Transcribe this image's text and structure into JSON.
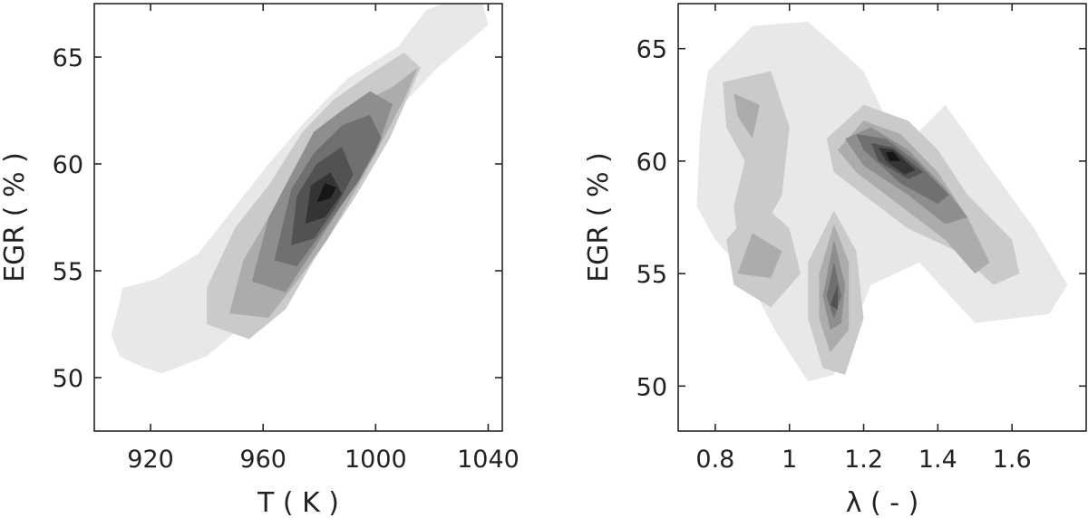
{
  "chart_data": [
    {
      "type": "contour",
      "xlabel": "T ( K )",
      "ylabel": "EGR ( % )",
      "xlim": [
        900,
        1045
      ],
      "ylim": [
        47.5,
        67.5
      ],
      "xticks": [
        920,
        960,
        1000,
        1040
      ],
      "yticks": [
        50,
        55,
        60,
        65
      ],
      "levels": 8,
      "colormap": "grayscale",
      "grid": false,
      "contours": [
        {
          "level": 1,
          "polygons": [
            [
              [
                906,
                52
              ],
              [
                909,
                51
              ],
              [
                917,
                50.5
              ],
              [
                924,
                50.2
              ],
              [
                940,
                51
              ],
              [
                958,
                53
              ],
              [
                972,
                55
              ],
              [
                988,
                58
              ],
              [
                1004,
                62
              ],
              [
                1022,
                64.5
              ],
              [
                1040,
                66.5
              ],
              [
                1038,
                67.5
              ],
              [
                1030,
                67.8
              ],
              [
                1018,
                67.2
              ],
              [
                1008,
                65.5
              ],
              [
                990,
                64
              ],
              [
                975,
                62
              ],
              [
                962,
                60
              ],
              [
                950,
                58
              ],
              [
                937,
                55.8
              ],
              [
                922,
                54.6
              ],
              [
                910,
                54.2
              ],
              [
                909,
                53.5
              ]
            ]
          ]
        },
        {
          "level": 2,
          "polygons": [
            [
              [
                940,
                52.5
              ],
              [
                955,
                51.8
              ],
              [
                968,
                53.2
              ],
              [
                978,
                55.5
              ],
              [
                993,
                58.5
              ],
              [
                1005,
                61.2
              ],
              [
                1016,
                64.5
              ],
              [
                1010,
                65.2
              ],
              [
                998,
                64.2
              ],
              [
                985,
                63
              ],
              [
                974,
                61.5
              ],
              [
                962,
                59
              ],
              [
                950,
                57
              ],
              [
                940,
                54.2
              ]
            ]
          ]
        },
        {
          "level": 3,
          "polygons": [
            [
              [
                948,
                53
              ],
              [
                962,
                52.8
              ],
              [
                972,
                54.5
              ],
              [
                983,
                56.5
              ],
              [
                996,
                59.5
              ],
              [
                1010,
                63
              ],
              [
                1015,
                64.5
              ],
              [
                1006,
                63.6
              ],
              [
                994,
                62.8
              ],
              [
                982,
                61.6
              ],
              [
                972,
                60
              ],
              [
                962,
                57.5
              ],
              [
                953,
                55.5
              ]
            ]
          ]
        },
        {
          "level": 4,
          "polygons": [
            [
              [
                956,
                54.5
              ],
              [
                968,
                54
              ],
              [
                978,
                56
              ],
              [
                990,
                58.5
              ],
              [
                1000,
                60.5
              ],
              [
                1006,
                62.8
              ],
              [
                998,
                63.4
              ],
              [
                988,
                62.5
              ],
              [
                978,
                61.5
              ],
              [
                970,
                59.5
              ],
              [
                962,
                57.5
              ]
            ]
          ]
        },
        {
          "level": 5,
          "polygons": [
            [
              [
                964,
                55.5
              ],
              [
                972,
                55.2
              ],
              [
                982,
                57
              ],
              [
                994,
                59.2
              ],
              [
                1002,
                61.2
              ],
              [
                998,
                62.3
              ],
              [
                988,
                61.8
              ],
              [
                978,
                60.5
              ],
              [
                970,
                58.8
              ]
            ]
          ]
        },
        {
          "level": 6,
          "polygons": [
            [
              [
                970,
                56.2
              ],
              [
                978,
                56.5
              ],
              [
                986,
                58
              ],
              [
                992,
                59.5
              ],
              [
                988,
                60.8
              ],
              [
                979,
                60
              ],
              [
                972,
                58.5
              ]
            ]
          ]
        },
        {
          "level": 7,
          "polygons": [
            [
              [
                975,
                57.2
              ],
              [
                982,
                57.5
              ],
              [
                988,
                58.6
              ],
              [
                984,
                59.6
              ],
              [
                977,
                59
              ]
            ]
          ]
        },
        {
          "level": 8,
          "polygons": [
            [
              [
                979,
                58.2
              ],
              [
                984,
                58.4
              ],
              [
                986,
                58.9
              ],
              [
                982,
                59.1
              ]
            ]
          ]
        }
      ]
    },
    {
      "type": "contour",
      "xlabel": "λ ( - )",
      "ylabel": "EGR ( % )",
      "xlim": [
        0.7,
        1.8
      ],
      "ylim": [
        48,
        67
      ],
      "xticks": [
        0.8,
        1,
        1.2,
        1.4,
        1.6
      ],
      "yticks": [
        50,
        55,
        60,
        65
      ],
      "levels": 8,
      "colormap": "grayscale",
      "grid": false,
      "contours": [
        {
          "level": 1,
          "polygons": [
            [
              [
                0.78,
                64
              ],
              [
                0.9,
                66
              ],
              [
                1.05,
                66.2
              ],
              [
                1.2,
                64
              ],
              [
                1.3,
                60.5
              ],
              [
                1.42,
                62.5
              ],
              [
                1.55,
                59.5
              ],
              [
                1.66,
                57
              ],
              [
                1.75,
                54.5
              ],
              [
                1.7,
                53.2
              ],
              [
                1.5,
                52.8
              ],
              [
                1.35,
                55.5
              ],
              [
                1.22,
                54.5
              ],
              [
                1.12,
                50.5
              ],
              [
                1.05,
                50.2
              ],
              [
                0.96,
                52.5
              ],
              [
                0.88,
                55
              ],
              [
                0.8,
                56.5
              ],
              [
                0.75,
                58
              ],
              [
                0.76,
                61.5
              ]
            ]
          ]
        },
        {
          "level": 2,
          "polygons": [
            [
              [
                0.82,
                63.5
              ],
              [
                0.95,
                64
              ],
              [
                1.0,
                61.5
              ],
              [
                0.98,
                58.5
              ],
              [
                0.93,
                57
              ],
              [
                0.86,
                56.5
              ],
              [
                0.85,
                58
              ],
              [
                0.88,
                60
              ],
              [
                0.83,
                61.5
              ]
            ],
            [
              [
                0.83,
                56.5
              ],
              [
                0.92,
                58.2
              ],
              [
                1.0,
                57
              ],
              [
                1.03,
                55
              ],
              [
                0.95,
                53.5
              ],
              [
                0.85,
                54.5
              ]
            ],
            [
              [
                1.05,
                55.5
              ],
              [
                1.12,
                57.8
              ],
              [
                1.18,
                56
              ],
              [
                1.2,
                53
              ],
              [
                1.15,
                50.5
              ],
              [
                1.09,
                50.8
              ],
              [
                1.05,
                53
              ]
            ],
            [
              [
                1.1,
                61
              ],
              [
                1.2,
                62.5
              ],
              [
                1.32,
                61.8
              ],
              [
                1.4,
                60.5
              ],
              [
                1.48,
                58.5
              ],
              [
                1.6,
                56.5
              ],
              [
                1.62,
                55
              ],
              [
                1.55,
                54.5
              ],
              [
                1.45,
                56
              ],
              [
                1.32,
                57
              ],
              [
                1.2,
                58.5
              ],
              [
                1.12,
                59.5
              ]
            ]
          ]
        },
        {
          "level": 3,
          "polygons": [
            [
              [
                0.85,
                63
              ],
              [
                0.92,
                62.5
              ],
              [
                0.9,
                61
              ],
              [
                0.86,
                62
              ]
            ],
            [
              [
                0.86,
                55
              ],
              [
                0.9,
                56.8
              ],
              [
                0.98,
                56
              ],
              [
                0.95,
                54.8
              ]
            ],
            [
              [
                1.08,
                55
              ],
              [
                1.12,
                57.2
              ],
              [
                1.16,
                55.5
              ],
              [
                1.16,
                52.5
              ],
              [
                1.11,
                51.5
              ],
              [
                1.08,
                53
              ]
            ],
            [
              [
                1.13,
                60.5
              ],
              [
                1.2,
                61.8
              ],
              [
                1.3,
                61.2
              ],
              [
                1.4,
                59.5
              ],
              [
                1.48,
                57.5
              ],
              [
                1.54,
                55.5
              ],
              [
                1.5,
                55
              ],
              [
                1.42,
                56.5
              ],
              [
                1.3,
                58
              ],
              [
                1.18,
                59.5
              ]
            ]
          ]
        },
        {
          "level": 4,
          "polygons": [
            [
              [
                1.09,
                54
              ],
              [
                1.12,
                56.5
              ],
              [
                1.15,
                54.5
              ],
              [
                1.14,
                52.8
              ],
              [
                1.11,
                52.5
              ]
            ],
            [
              [
                1.15,
                61
              ],
              [
                1.22,
                61.5
              ],
              [
                1.32,
                60.5
              ],
              [
                1.42,
                58.8
              ],
              [
                1.48,
                57.5
              ],
              [
                1.42,
                57.2
              ],
              [
                1.32,
                58.5
              ],
              [
                1.2,
                59.8
              ]
            ]
          ]
        },
        {
          "level": 5,
          "polygons": [
            [
              [
                1.1,
                54
              ],
              [
                1.12,
                55.5
              ],
              [
                1.14,
                54
              ],
              [
                1.12,
                53
              ]
            ],
            [
              [
                1.18,
                61.2
              ],
              [
                1.26,
                61
              ],
              [
                1.34,
                60
              ],
              [
                1.43,
                58.5
              ],
              [
                1.4,
                58.1
              ],
              [
                1.3,
                59
              ],
              [
                1.2,
                60.5
              ]
            ]
          ]
        },
        {
          "level": 6,
          "polygons": [
            [
              [
                1.11,
                53.6
              ],
              [
                1.13,
                54.5
              ],
              [
                1.13,
                53.4
              ]
            ],
            [
              [
                1.22,
                60.8
              ],
              [
                1.28,
                60.6
              ],
              [
                1.36,
                59.5
              ],
              [
                1.32,
                59.2
              ],
              [
                1.24,
                60
              ]
            ]
          ]
        },
        {
          "level": 7,
          "polygons": [
            [
              [
                1.24,
                60.6
              ],
              [
                1.28,
                60.5
              ],
              [
                1.34,
                59.6
              ],
              [
                1.31,
                59.4
              ],
              [
                1.26,
                60
              ]
            ]
          ]
        },
        {
          "level": 8,
          "polygons": [
            [
              [
                1.26,
                60.4
              ],
              [
                1.28,
                60.4
              ],
              [
                1.3,
                60
              ],
              [
                1.27,
                60
              ]
            ]
          ]
        }
      ]
    }
  ]
}
